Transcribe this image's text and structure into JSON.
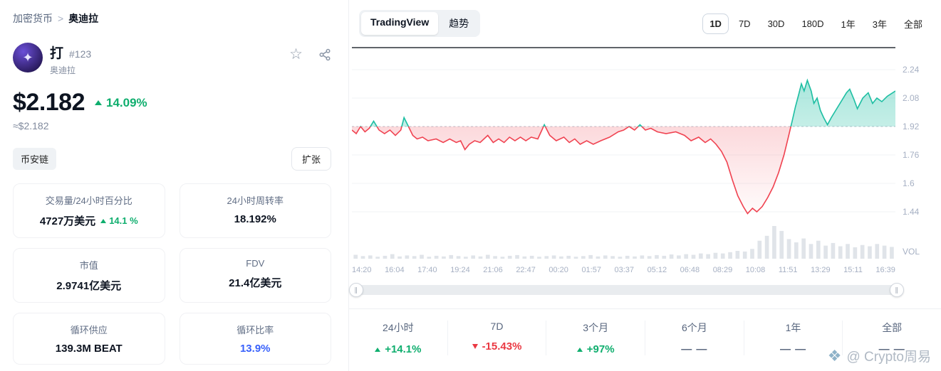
{
  "breadcrumb": {
    "root": "加密货币",
    "separator": ">",
    "current": "奥迪拉"
  },
  "icons": {
    "star": "☆",
    "avatar": "✦"
  },
  "coin": {
    "name": "打",
    "rank": "#123",
    "subtitle": "奥迪拉",
    "price": "$2.182",
    "change_pct": "14.09%",
    "approx_price": "≈$2.182",
    "chain_tag": "币安链",
    "expand_button": "扩张"
  },
  "stats_cards": [
    {
      "label": "交易量/24小时百分比",
      "value": "4727万美元",
      "extra": "14.1 %"
    },
    {
      "label": "24小时周转率",
      "value": "18.192%"
    },
    {
      "label": "市值",
      "value": "2.9741亿美元"
    },
    {
      "label": "FDV",
      "value": "21.4亿美元"
    },
    {
      "label": "循环供应",
      "value": "139.3M BEAT"
    },
    {
      "label": "循环比率",
      "value": "13.9%"
    }
  ],
  "toolbar": {
    "source_tabs": [
      "TradingView",
      "趋势"
    ],
    "active_source": "TradingView",
    "periods": [
      "1D",
      "7D",
      "30D",
      "180D",
      "1年",
      "3年",
      "全部"
    ],
    "active_period": "1D"
  },
  "chart_data": {
    "type": "area",
    "title": "",
    "baseline": 1.92,
    "ylim": [
      1.368,
      2.368
    ],
    "y_ticks": [
      2.24,
      2.08,
      1.92,
      1.76,
      1.6,
      1.44
    ],
    "vol_label": "VOL",
    "x_labels": [
      "14:20",
      "16:04",
      "17:40",
      "19:24",
      "21:06",
      "22:47",
      "00:20",
      "01:57",
      "03:37",
      "05:12",
      "06:48",
      "08:29",
      "10:08",
      "11:51",
      "13:29",
      "15:11",
      "16:39"
    ],
    "series": [
      {
        "name": "price",
        "points": [
          [
            0,
            1.9
          ],
          [
            0.008,
            1.88
          ],
          [
            0.016,
            1.92
          ],
          [
            0.024,
            1.89
          ],
          [
            0.032,
            1.91
          ],
          [
            0.04,
            1.95
          ],
          [
            0.05,
            1.9
          ],
          [
            0.06,
            1.88
          ],
          [
            0.07,
            1.9
          ],
          [
            0.08,
            1.87
          ],
          [
            0.09,
            1.9
          ],
          [
            0.096,
            1.97
          ],
          [
            0.104,
            1.92
          ],
          [
            0.112,
            1.87
          ],
          [
            0.12,
            1.85
          ],
          [
            0.13,
            1.86
          ],
          [
            0.14,
            1.84
          ],
          [
            0.155,
            1.85
          ],
          [
            0.168,
            1.83
          ],
          [
            0.18,
            1.85
          ],
          [
            0.192,
            1.83
          ],
          [
            0.2,
            1.84
          ],
          [
            0.208,
            1.79
          ],
          [
            0.216,
            1.82
          ],
          [
            0.226,
            1.84
          ],
          [
            0.236,
            1.83
          ],
          [
            0.25,
            1.87
          ],
          [
            0.26,
            1.83
          ],
          [
            0.27,
            1.85
          ],
          [
            0.28,
            1.83
          ],
          [
            0.29,
            1.86
          ],
          [
            0.3,
            1.84
          ],
          [
            0.31,
            1.86
          ],
          [
            0.32,
            1.84
          ],
          [
            0.33,
            1.86
          ],
          [
            0.342,
            1.85
          ],
          [
            0.354,
            1.93
          ],
          [
            0.364,
            1.87
          ],
          [
            0.376,
            1.84
          ],
          [
            0.39,
            1.86
          ],
          [
            0.4,
            1.83
          ],
          [
            0.41,
            1.85
          ],
          [
            0.42,
            1.82
          ],
          [
            0.432,
            1.84
          ],
          [
            0.444,
            1.82
          ],
          [
            0.458,
            1.84
          ],
          [
            0.474,
            1.86
          ],
          [
            0.49,
            1.89
          ],
          [
            0.5,
            1.9
          ],
          [
            0.51,
            1.92
          ],
          [
            0.52,
            1.9
          ],
          [
            0.53,
            1.93
          ],
          [
            0.54,
            1.9
          ],
          [
            0.55,
            1.91
          ],
          [
            0.562,
            1.89
          ],
          [
            0.578,
            1.88
          ],
          [
            0.596,
            1.89
          ],
          [
            0.612,
            1.87
          ],
          [
            0.624,
            1.84
          ],
          [
            0.638,
            1.86
          ],
          [
            0.65,
            1.83
          ],
          [
            0.66,
            1.85
          ],
          [
            0.67,
            1.82
          ],
          [
            0.68,
            1.78
          ],
          [
            0.69,
            1.72
          ],
          [
            0.7,
            1.62
          ],
          [
            0.71,
            1.53
          ],
          [
            0.72,
            1.47
          ],
          [
            0.728,
            1.43
          ],
          [
            0.737,
            1.46
          ],
          [
            0.745,
            1.44
          ],
          [
            0.755,
            1.47
          ],
          [
            0.765,
            1.52
          ],
          [
            0.775,
            1.58
          ],
          [
            0.785,
            1.66
          ],
          [
            0.795,
            1.76
          ],
          [
            0.803,
            1.86
          ],
          [
            0.81,
            1.95
          ],
          [
            0.816,
            2.03
          ],
          [
            0.822,
            2.1
          ],
          [
            0.827,
            2.16
          ],
          [
            0.832,
            2.12
          ],
          [
            0.838,
            2.18
          ],
          [
            0.845,
            2.12
          ],
          [
            0.85,
            2.05
          ],
          [
            0.856,
            2.08
          ],
          [
            0.862,
            2.01
          ],
          [
            0.868,
            1.97
          ],
          [
            0.875,
            1.93
          ],
          [
            0.882,
            1.97
          ],
          [
            0.89,
            2.01
          ],
          [
            0.9,
            2.06
          ],
          [
            0.91,
            2.11
          ],
          [
            0.916,
            2.13
          ],
          [
            0.924,
            2.07
          ],
          [
            0.93,
            2.02
          ],
          [
            0.94,
            2.08
          ],
          [
            0.95,
            2.11
          ],
          [
            0.958,
            2.05
          ],
          [
            0.966,
            2.08
          ],
          [
            0.975,
            2.06
          ],
          [
            0.985,
            2.09
          ],
          [
            1,
            2.12
          ]
        ]
      }
    ],
    "volume": [
      0.12,
      0.08,
      0.1,
      0.06,
      0.09,
      0.14,
      0.07,
      0.1,
      0.08,
      0.12,
      0.06,
      0.09,
      0.07,
      0.11,
      0.08,
      0.06,
      0.1,
      0.07,
      0.12,
      0.08,
      0.06,
      0.09,
      0.11,
      0.07,
      0.09,
      0.06,
      0.08,
      0.1,
      0.07,
      0.09,
      0.06,
      0.08,
      0.11,
      0.07,
      0.1,
      0.08,
      0.06,
      0.09,
      0.07,
      0.1,
      0.08,
      0.11,
      0.09,
      0.13,
      0.1,
      0.14,
      0.12,
      0.16,
      0.14,
      0.18,
      0.16,
      0.2,
      0.24,
      0.22,
      0.3,
      0.55,
      0.7,
      1.0,
      0.85,
      0.6,
      0.5,
      0.62,
      0.45,
      0.55,
      0.4,
      0.48,
      0.38,
      0.45,
      0.35,
      0.42,
      0.38,
      0.45,
      0.4,
      0.36
    ],
    "colors": {
      "up": "#1fbfa3",
      "down": "#f04452",
      "baseline": "#b9c0cb",
      "grid": "#f1f3f6",
      "volume_bar": "#e0e4e9",
      "top_line": "#2b3139"
    }
  },
  "bottom_stats": [
    {
      "label": "24小时",
      "value": "+14.1%",
      "dir": "up"
    },
    {
      "label": "7D",
      "value": "-15.43%",
      "dir": "down"
    },
    {
      "label": "3个月",
      "value": "+97%",
      "dir": "up"
    },
    {
      "label": "6个月",
      "value": "— —",
      "dir": "none"
    },
    {
      "label": "1年",
      "value": "— —",
      "dir": "none"
    },
    {
      "label": "全部",
      "value": "— —",
      "dir": "none"
    }
  ],
  "slider": {
    "handle_glyph": "∥"
  },
  "watermark": {
    "logo_glyph": "❖",
    "text": "@ Crypto周易"
  },
  "colors": {
    "up_text": "#0fae6e",
    "down_text": "#ea3943",
    "blue": "#3861fb"
  }
}
